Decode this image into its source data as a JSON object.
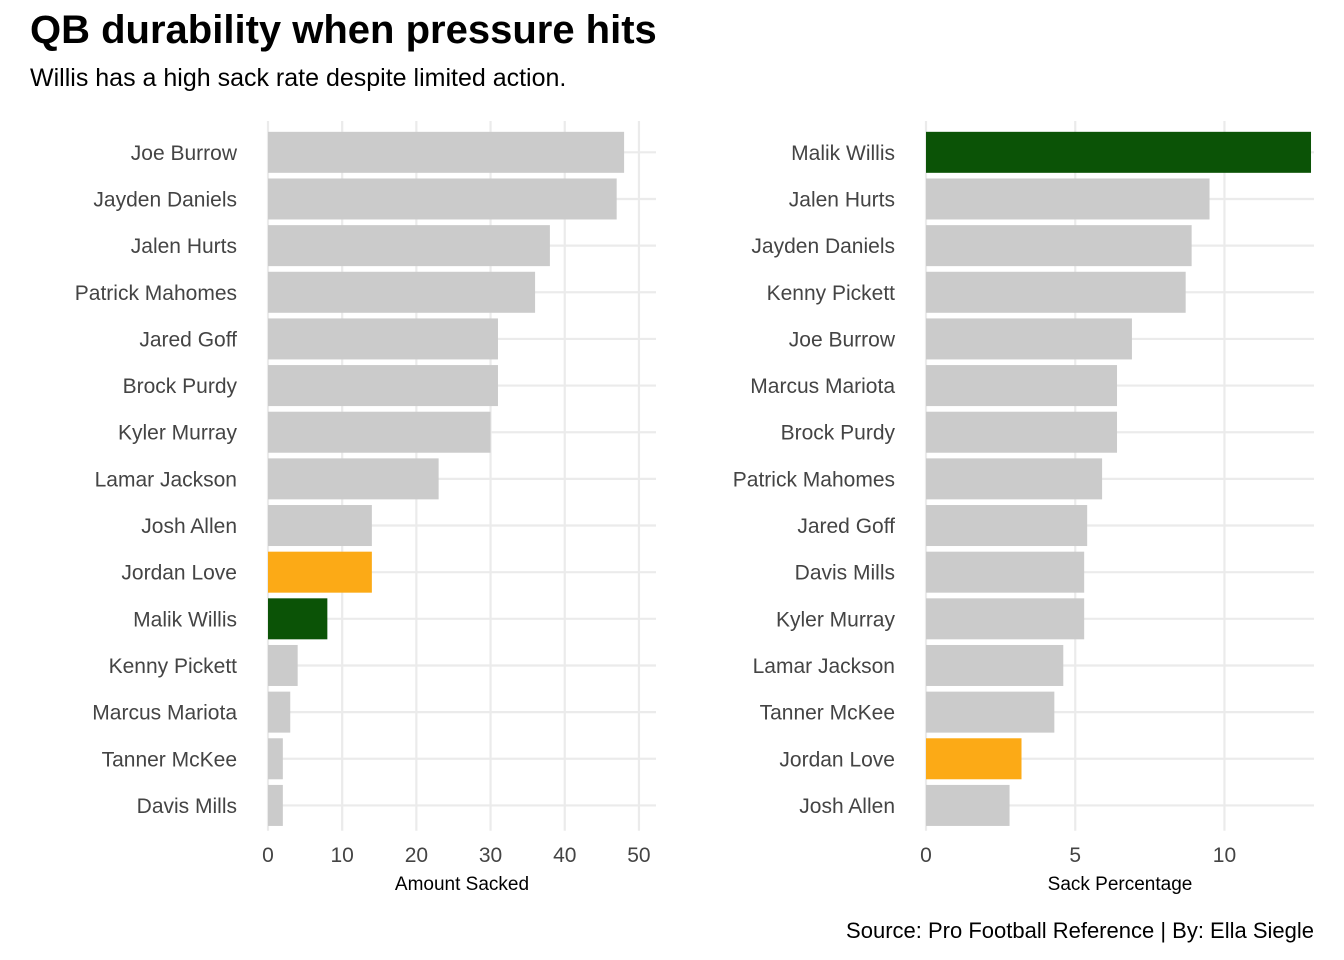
{
  "title": "QB durability when pressure hits",
  "subtitle": "Willis has a high sack rate despite limited action.",
  "caption": "Source: Pro Football Reference | By: Ella Siegle",
  "colors": {
    "default_bar": "#cbcbcb",
    "malik_willis": "#0b5306",
    "jordan_love": "#fcaa16",
    "grid": "#ebebeb"
  },
  "chart_data": [
    {
      "type": "bar",
      "orientation": "horizontal",
      "xlabel": "Amount Sacked",
      "xlim": [
        0,
        50
      ],
      "xticks": [
        0,
        10,
        20,
        30,
        40,
        50
      ],
      "grid": true,
      "categories": [
        "Joe Burrow",
        "Jayden Daniels",
        "Jalen Hurts",
        "Patrick Mahomes",
        "Jared Goff",
        "Brock Purdy",
        "Kyler Murray",
        "Lamar Jackson",
        "Josh Allen",
        "Jordan Love",
        "Malik Willis",
        "Kenny Pickett",
        "Marcus Mariota",
        "Tanner McKee",
        "Davis Mills"
      ],
      "values": [
        48,
        47,
        38,
        36,
        31,
        31,
        30,
        23,
        14,
        14,
        8,
        4,
        3,
        2,
        2
      ],
      "highlight": {
        "Malik Willis": "malik_willis",
        "Jordan Love": "jordan_love"
      }
    },
    {
      "type": "bar",
      "orientation": "horizontal",
      "xlabel": "Sack Percentage",
      "xlim": [
        0,
        13
      ],
      "xticks": [
        0,
        5,
        10
      ],
      "grid": true,
      "categories": [
        "Malik Willis",
        "Jalen Hurts",
        "Jayden Daniels",
        "Kenny Pickett",
        "Joe Burrow",
        "Marcus Mariota",
        "Brock Purdy",
        "Patrick Mahomes",
        "Jared Goff",
        "Davis Mills",
        "Kyler Murray",
        "Lamar Jackson",
        "Tanner McKee",
        "Jordan Love",
        "Josh Allen"
      ],
      "values": [
        12.9,
        9.5,
        8.9,
        8.7,
        6.9,
        6.4,
        6.4,
        5.9,
        5.4,
        5.3,
        5.3,
        4.6,
        4.3,
        3.2,
        2.8
      ],
      "highlight": {
        "Malik Willis": "malik_willis",
        "Jordan Love": "jordan_love"
      }
    }
  ]
}
